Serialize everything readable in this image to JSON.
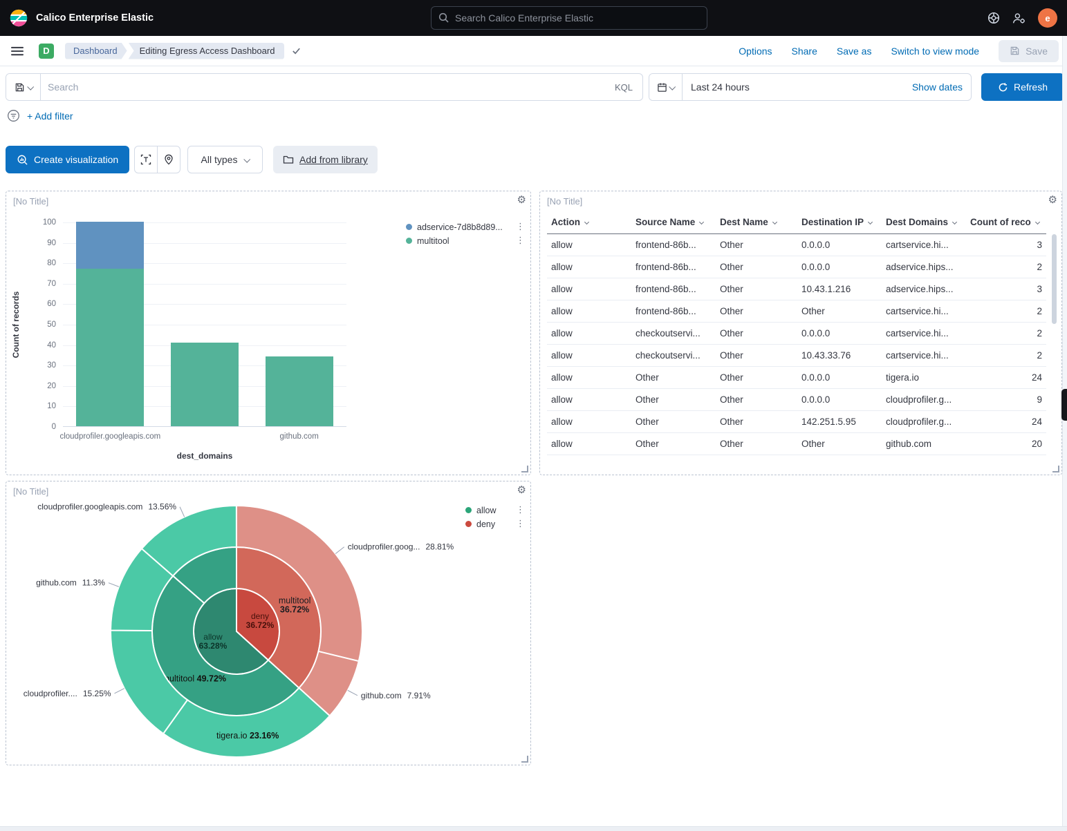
{
  "colors": {
    "primary_button": "#0d71c2",
    "link": "#006bb4",
    "bar_blue": "#6092c0",
    "bar_green": "#54b399",
    "allow_green": "#2ba579",
    "deny_red": "#cb4a3f",
    "avatar_orange": "#ee7445",
    "dashboard_badge_green": "#3cab63"
  },
  "top_bar": {
    "title": "Calico Enterprise Elastic",
    "search_placeholder": "Search Calico Enterprise Elastic",
    "avatar_initial": "e"
  },
  "nav_bar": {
    "breadcrumbs": [
      "Dashboard",
      "Editing Egress Access Dashboard"
    ],
    "actions": [
      "Options",
      "Share",
      "Save as",
      "Switch to view mode"
    ],
    "save_label": "Save"
  },
  "query_bar": {
    "search_placeholder": "Search",
    "kql_label": "KQL",
    "time_range": "Last 24 hours",
    "show_dates_label": "Show dates",
    "refresh_label": "Refresh",
    "add_filter_label": "+ Add filter"
  },
  "toolbar": {
    "create_visualization_label": "Create visualization",
    "all_types_label": "All types",
    "add_from_library_label": "Add from library"
  },
  "panels": {
    "bar_panel": {
      "title": "[No Title]"
    },
    "table_panel": {
      "title": "[No Title]"
    },
    "pie_panel": {
      "title": "[No Title]"
    }
  },
  "chart_data": [
    {
      "id": "bar",
      "type": "bar",
      "title": "[No Title]",
      "stacked": true,
      "categories": [
        "cloudprofiler.googleapis.com",
        "",
        "github.com"
      ],
      "series": [
        {
          "name": "adservice-7d8b8d89...",
          "color": "#6092c0",
          "values": [
            23,
            0,
            0
          ]
        },
        {
          "name": "multitool",
          "color": "#54b399",
          "values": [
            77,
            41,
            34
          ]
        }
      ],
      "xlabel": "dest_domains",
      "ylabel": "Count of records",
      "ylim": [
        0,
        100
      ],
      "y_ticks": [
        0,
        10,
        20,
        30,
        40,
        50,
        60,
        70,
        80,
        90,
        100
      ],
      "grid": true,
      "legend_position": "right"
    },
    {
      "id": "table",
      "type": "table",
      "title": "[No Title]",
      "columns": [
        {
          "label": "Action"
        },
        {
          "label": "Source Name"
        },
        {
          "label": "Dest Name"
        },
        {
          "label": "Destination IP"
        },
        {
          "label": "Dest Domains"
        },
        {
          "label": "Count of reco",
          "numeric": true
        }
      ],
      "rows": [
        [
          "allow",
          "frontend-86b...",
          "Other",
          "0.0.0.0",
          "cartservice.hi...",
          "3"
        ],
        [
          "allow",
          "frontend-86b...",
          "Other",
          "0.0.0.0",
          "adservice.hips...",
          "2"
        ],
        [
          "allow",
          "frontend-86b...",
          "Other",
          "10.43.1.216",
          "adservice.hips...",
          "3"
        ],
        [
          "allow",
          "frontend-86b...",
          "Other",
          "Other",
          "cartservice.hi...",
          "2"
        ],
        [
          "allow",
          "checkoutservi...",
          "Other",
          "0.0.0.0",
          "cartservice.hi...",
          "2"
        ],
        [
          "allow",
          "checkoutservi...",
          "Other",
          "10.43.33.76",
          "cartservice.hi...",
          "2"
        ],
        [
          "allow",
          "Other",
          "Other",
          "0.0.0.0",
          "tigera.io",
          "24"
        ],
        [
          "allow",
          "Other",
          "Other",
          "0.0.0.0",
          "cloudprofiler.g...",
          "9"
        ],
        [
          "allow",
          "Other",
          "Other",
          "142.251.5.95",
          "cloudprofiler.g...",
          "24"
        ],
        [
          "allow",
          "Other",
          "Other",
          "Other",
          "github.com",
          "20"
        ]
      ]
    },
    {
      "id": "sunburst",
      "type": "pie",
      "title": "[No Title]",
      "legend": [
        {
          "label": "allow",
          "color": "#2ba579"
        },
        {
          "label": "deny",
          "color": "#cb4a3f"
        }
      ],
      "rings": [
        [
          {
            "label": "deny",
            "pct": 36.72,
            "pct_label": "36.72%",
            "color": "#c8493f",
            "label_layout": "stacked",
            "label_color": "#47100b"
          },
          {
            "label": "allow",
            "pct": 63.28,
            "pct_label": "63.28%",
            "color": "#2e8870",
            "label_layout": "stacked",
            "label_color": "#0b3429"
          }
        ],
        [
          {
            "label": "multitool",
            "pct": 36.72,
            "pct_label": "36.72%",
            "color": "#d2685a",
            "label_layout": "stacked",
            "label_color": "#1a1c21"
          },
          {
            "label": "multitool",
            "pct": 49.72,
            "pct_label": "49.72%",
            "color": "#35a184",
            "label_layout": "inline",
            "label_color": "#12130f"
          },
          {
            "label": "",
            "pct": 13.56,
            "pct_label": "",
            "color": "#35a184",
            "label_layout": "none"
          }
        ],
        [
          {
            "label": "cloudprofiler.goog...",
            "pct": 28.81,
            "pct_label": "28.81%",
            "color": "#de9087",
            "label_layout": "callout"
          },
          {
            "label": "github.com",
            "pct": 7.91,
            "pct_label": "7.91%",
            "color": "#de9087",
            "label_layout": "callout"
          },
          {
            "label": "tigera.io",
            "pct": 23.16,
            "pct_label": "23.16%",
            "color": "#4bc9a6",
            "label_layout": "inline",
            "label_color": "#12130f"
          },
          {
            "label": "cloudprofiler....",
            "pct": 15.25,
            "pct_label": "15.25%",
            "color": "#4bc9a6",
            "label_layout": "callout"
          },
          {
            "label": "github.com",
            "pct": 11.3,
            "pct_label": "11.3%",
            "color": "#4bc9a6",
            "label_layout": "callout"
          },
          {
            "label": "cloudprofiler.googleapis.com",
            "pct": 13.56,
            "pct_label": "13.56%",
            "color": "#4bc9a6",
            "label_layout": "callout"
          }
        ]
      ]
    }
  ]
}
